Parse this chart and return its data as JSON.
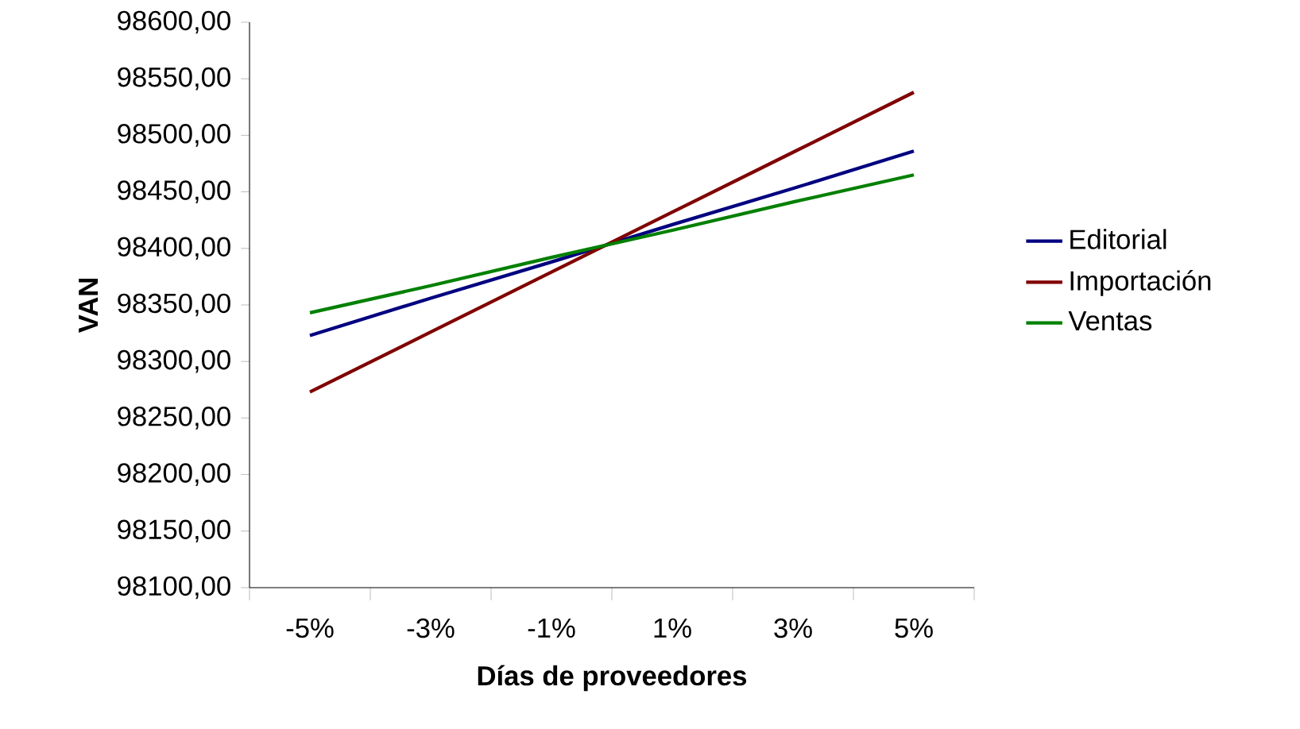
{
  "chart_data": {
    "type": "line",
    "xlabel": "Días de proveedores",
    "ylabel": "VAN",
    "categories": [
      "-5%",
      "-3%",
      "-1%",
      "1%",
      "3%",
      "5%"
    ],
    "series": [
      {
        "name": "Editorial",
        "color": "#000080",
        "values": [
          98323,
          98356,
          98388,
          98421,
          98453,
          98486
        ]
      },
      {
        "name": "Importación",
        "color": "#800000",
        "values": [
          98273,
          98326,
          98379,
          98432,
          98485,
          98538
        ]
      },
      {
        "name": "Ventas",
        "color": "#008000",
        "values": [
          98343,
          98367,
          98392,
          98416,
          98441,
          98465
        ]
      }
    ],
    "ylim": [
      98100,
      98600
    ],
    "yticks": [
      {
        "value": 98100,
        "label": "98100,00"
      },
      {
        "value": 98150,
        "label": "98150,00"
      },
      {
        "value": 98200,
        "label": "98200,00"
      },
      {
        "value": 98250,
        "label": "98250,00"
      },
      {
        "value": 98300,
        "label": "98300,00"
      },
      {
        "value": 98350,
        "label": "98350,00"
      },
      {
        "value": 98400,
        "label": "98400,00"
      },
      {
        "value": 98450,
        "label": "98450,00"
      },
      {
        "value": 98500,
        "label": "98500,00"
      },
      {
        "value": 98550,
        "label": "98550,00"
      },
      {
        "value": 98600,
        "label": "98600,00"
      }
    ],
    "legend": "right"
  }
}
